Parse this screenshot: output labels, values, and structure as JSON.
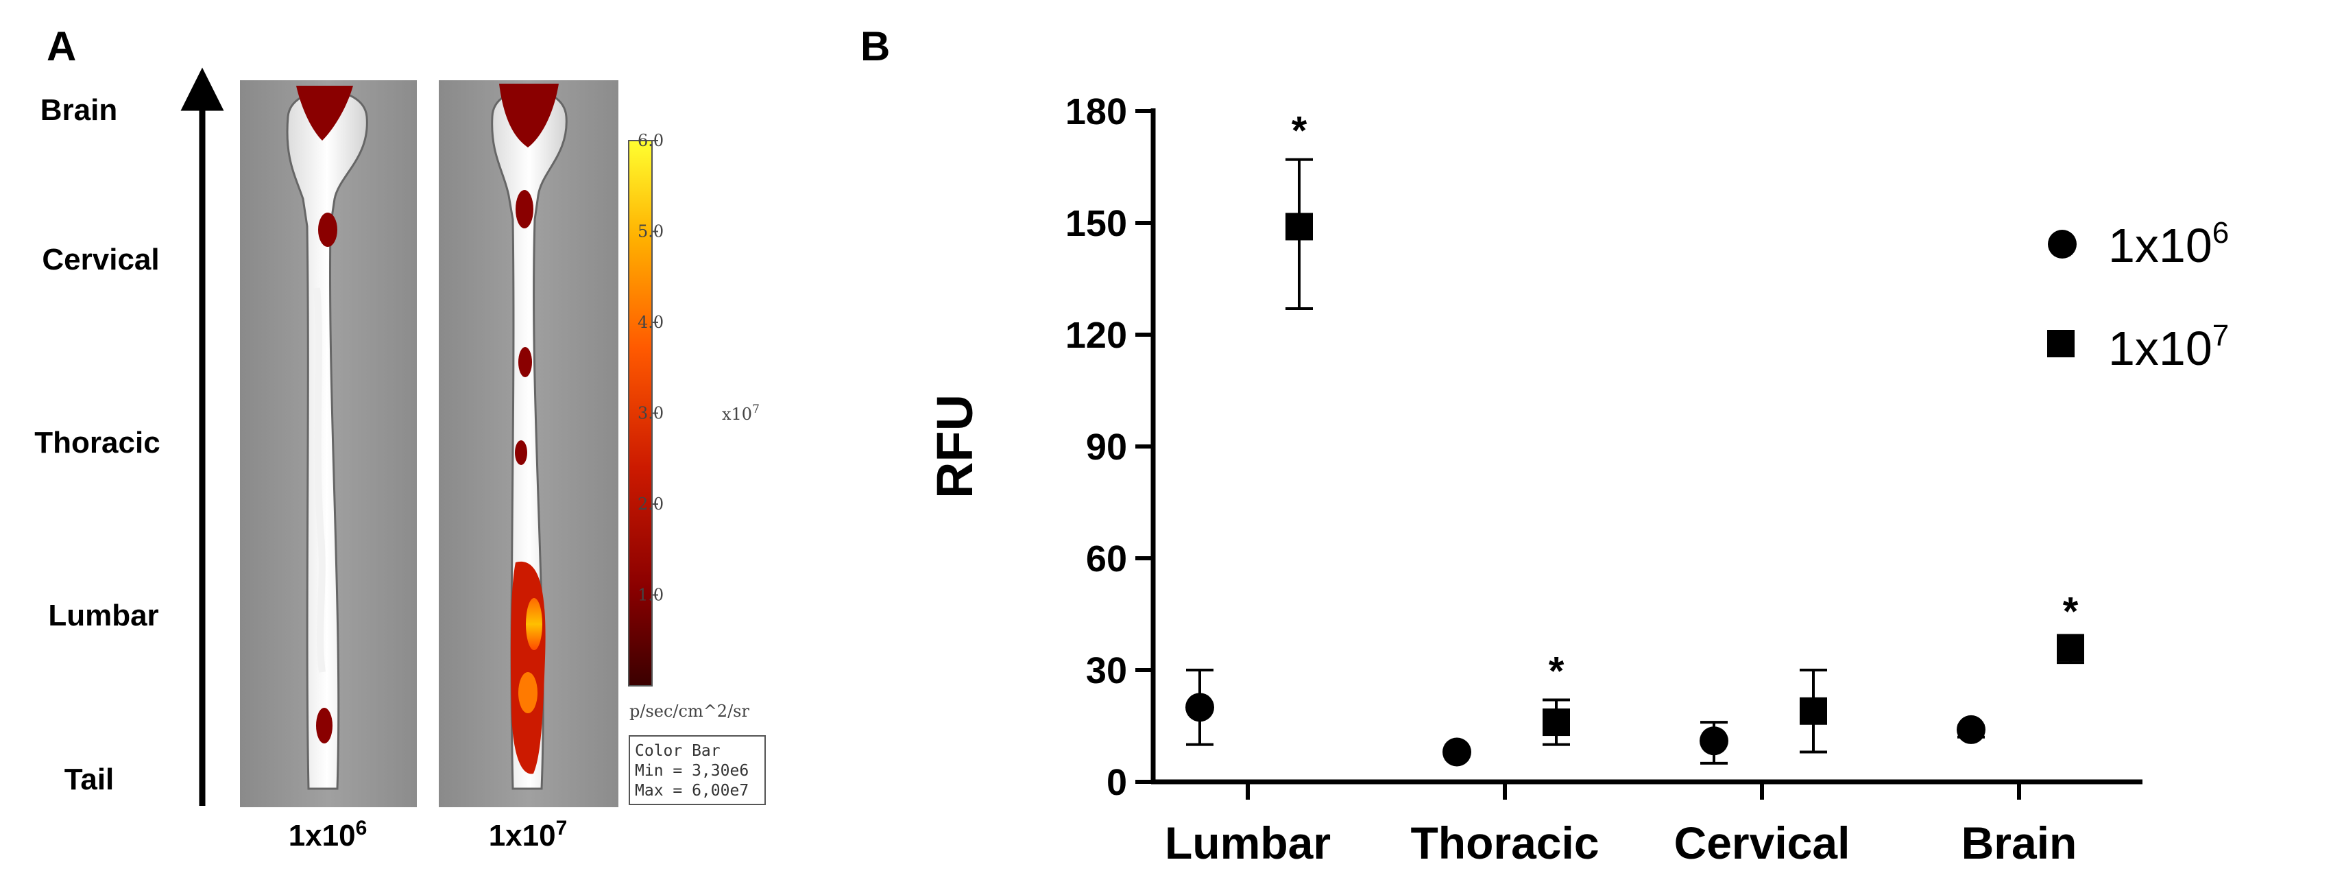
{
  "panel_a": {
    "letter": "A",
    "regions": [
      "Brain",
      "Cervical",
      "Thoracic",
      "Lumbar",
      "Tail"
    ],
    "strip_labels": [
      {
        "base": "1x10",
        "exp": "6"
      },
      {
        "base": "1x10",
        "exp": "7"
      }
    ],
    "colorbar": {
      "ticks": [
        "6.0",
        "5.0",
        "4.0",
        "3.0",
        "2.0",
        "1.0"
      ],
      "scale_base": "x10",
      "scale_exp": "7",
      "unit": "p/sec/cm^2/sr",
      "box_title": "Color Bar",
      "box_min": "Min = 3,30e6",
      "box_max": "Max = 6,00e7",
      "colors": [
        "#3a0000",
        "#8a0000",
        "#cc1a00",
        "#ff5a00",
        "#ffb000",
        "#ffff30"
      ]
    }
  },
  "panel_b": {
    "letter": "B"
  },
  "chart_data": {
    "type": "scatter",
    "title": "",
    "xlabel": "",
    "ylabel": "RFU",
    "categories": [
      "Lumbar",
      "Thoracic",
      "Cervical",
      "Brain"
    ],
    "ylim": [
      0,
      180
    ],
    "yticks": [
      "0",
      "30",
      "60",
      "90",
      "120",
      "150",
      "180"
    ],
    "legend_position": "right",
    "series": [
      {
        "name_base": "1x10",
        "name_exp": "6",
        "marker": "circle",
        "values": [
          20,
          8,
          11,
          14
        ],
        "err_low": [
          10,
          0,
          5,
          12
        ],
        "err_high": [
          30,
          0,
          16,
          15
        ]
      },
      {
        "name_base": "1x10",
        "name_exp": "7",
        "marker": "square",
        "values": [
          149,
          16,
          19,
          36
        ],
        "err_low": [
          127,
          10,
          8,
          32
        ],
        "err_high": [
          167,
          22,
          30,
          38
        ]
      }
    ],
    "significance": [
      "*",
      "*",
      "",
      "*"
    ]
  }
}
